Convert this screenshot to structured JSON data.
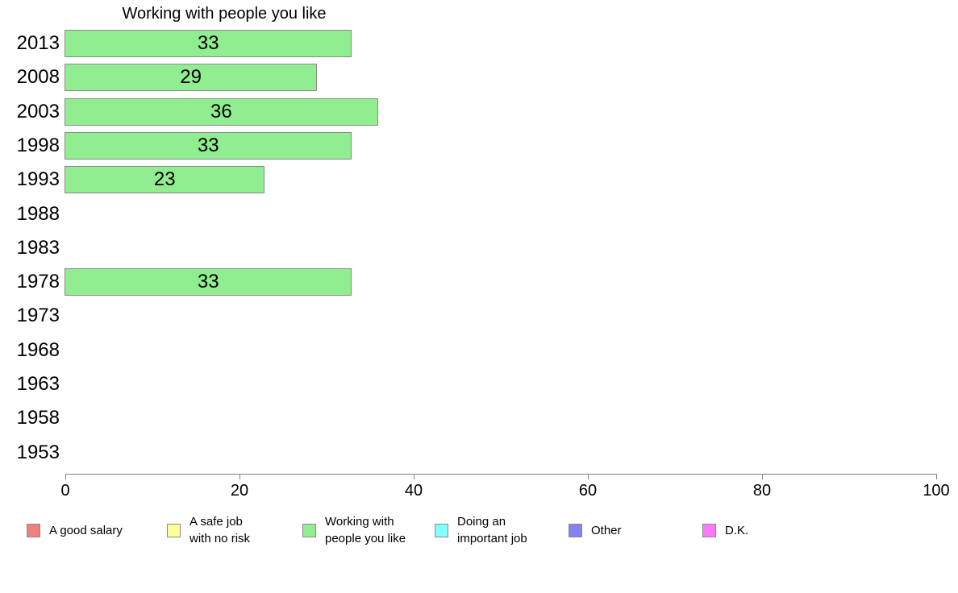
{
  "chart_data": {
    "type": "bar",
    "orientation": "horizontal",
    "title": "Working with people you like",
    "categories": [
      "2013",
      "2008",
      "2003",
      "1998",
      "1993",
      "1988",
      "1983",
      "1978",
      "1973",
      "1968",
      "1963",
      "1958",
      "1953"
    ],
    "values": [
      33,
      29,
      36,
      33,
      23,
      null,
      null,
      33,
      null,
      null,
      null,
      null,
      null
    ],
    "xlabel": "",
    "ylabel": "",
    "xlim": [
      0,
      100
    ],
    "x_ticks": [
      0,
      20,
      40,
      60,
      80,
      100
    ],
    "grid": false,
    "bar_color": "#90EE90",
    "bar_border_color": "#8a8a8a",
    "axis_color": "#808080",
    "legend_position": "bottom",
    "legend": [
      {
        "label": "A good salary",
        "color": "#F08080"
      },
      {
        "label": "A safe job with no risk",
        "color": "#FFFF99"
      },
      {
        "label": "Working with people you like",
        "color": "#90EE90"
      },
      {
        "label": "Doing an important job",
        "color": "#85FFFF"
      },
      {
        "label": "Other",
        "color": "#8282F2"
      },
      {
        "label": "D.K.",
        "color": "#FA7BFA"
      }
    ]
  }
}
